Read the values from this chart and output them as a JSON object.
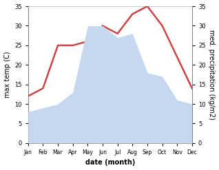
{
  "months": [
    "Jan",
    "Feb",
    "Mar",
    "Apr",
    "May",
    "Jun",
    "Jul",
    "Aug",
    "Sep",
    "Oct",
    "Nov",
    "Dec"
  ],
  "temperature": [
    12,
    14,
    25,
    25,
    26,
    30,
    28,
    33,
    35,
    30,
    22,
    14
  ],
  "precipitation": [
    8,
    9,
    10,
    13,
    30,
    30,
    27,
    28,
    18,
    17,
    11,
    10
  ],
  "temp_color": "#cc4444",
  "precip_color": "#c5d8f0",
  "ylabel_left": "max temp (C)",
  "ylabel_right": "med. precipitation (kg/m2)",
  "xlabel": "date (month)",
  "ylim": [
    0,
    35
  ],
  "yticks": [
    0,
    5,
    10,
    15,
    20,
    25,
    30,
    35
  ],
  "bg_color": "#ffffff",
  "line_width": 1.8
}
